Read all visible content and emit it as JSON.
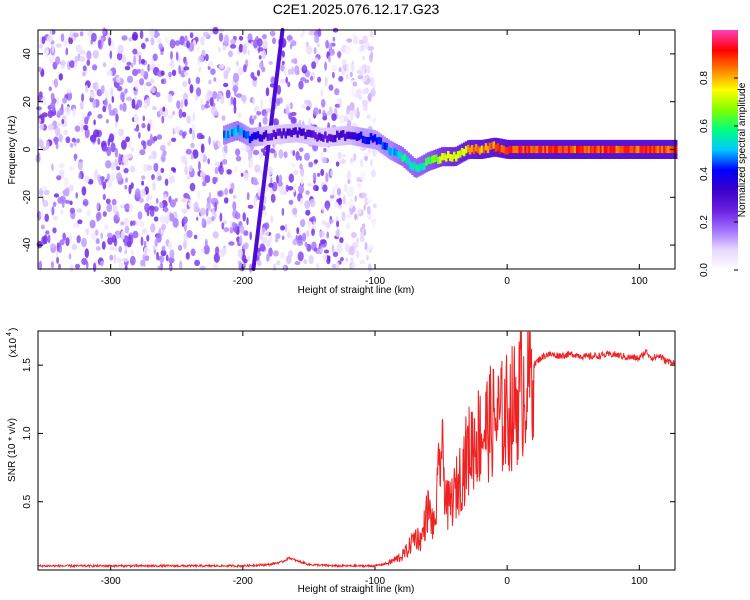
{
  "figure": {
    "title": "C2E1.2025.076.12.17.G23"
  },
  "chart_data": [
    {
      "type": "heatmap",
      "title": "C2E1.2025.076.12.17.G23",
      "xlabel": "Height of straight line (km)",
      "ylabel": "Frequency (Hz)",
      "xlim": [
        -355,
        127
      ],
      "ylim": [
        -50,
        50
      ],
      "x_ticks": [
        -300,
        -200,
        -100,
        0,
        100
      ],
      "x_tick_labels": [
        "-300",
        "-200",
        "-100",
        "0",
        "100"
      ],
      "y_ticks": [
        -40,
        -20,
        0,
        20,
        40
      ],
      "y_tick_labels": [
        "-40",
        "-20",
        "0",
        "20",
        "40"
      ],
      "colorbar": {
        "label": "Normalized spectral amplitude",
        "range": [
          0,
          1
        ],
        "ticks": [
          0,
          0.2,
          0.4,
          0.6,
          0.8
        ],
        "tick_labels": [
          "0.0",
          "0.2",
          "0.4",
          "0.6",
          "0.8"
        ],
        "colormap": [
          "#ffffff",
          "#e8d8ff",
          "#a070ff",
          "#6a1fe0",
          "#3a00c8",
          "#0000ff",
          "#00c8ff",
          "#00ff80",
          "#80ff00",
          "#ffff00",
          "#ff8000",
          "#ff0000",
          "#ff40c0"
        ]
      },
      "noise_region_x": [
        -355,
        -100
      ],
      "noise_level": 0.25,
      "dominant_track": {
        "description_points_x": [
          -215,
          -205,
          -195,
          -180,
          -160,
          -140,
          -120,
          -110,
          -100,
          -90,
          -80,
          -70,
          -60,
          -50,
          -40,
          -30,
          -20,
          -10,
          0,
          20,
          50,
          80,
          127
        ],
        "frequency_hz": [
          6,
          8,
          5,
          6,
          7,
          5,
          6,
          5,
          4,
          0,
          -3,
          -8,
          -5,
          -3,
          -3,
          0,
          0,
          1,
          0,
          0,
          0,
          0,
          0
        ],
        "amplitude": [
          0.5,
          0.55,
          0.45,
          0.3,
          0.35,
          0.3,
          0.35,
          0.45,
          0.45,
          0.5,
          0.6,
          0.6,
          0.65,
          0.75,
          0.8,
          0.85,
          0.9,
          0.9,
          0.95,
          0.95,
          0.95,
          0.95,
          0.95
        ]
      },
      "sloped_line": {
        "from": [
          -192,
          -50
        ],
        "to": [
          -170,
          50
        ],
        "amplitude": 0.3
      }
    },
    {
      "type": "line",
      "xlabel": "Height of straight line (km)",
      "ylabel": "SNR (10 * v/v)",
      "multiplier_label": "(x10",
      "multiplier_exponent": "4",
      "xlim": [
        -355,
        127
      ],
      "ylim": [
        0,
        1.75
      ],
      "x_ticks": [
        -300,
        -200,
        -100,
        0,
        100
      ],
      "x_tick_labels": [
        "-300",
        "-200",
        "-100",
        "0",
        "100"
      ],
      "y_ticks": [
        0.5,
        1.0,
        1.5
      ],
      "y_tick_labels": [
        "0.5",
        "1.0",
        "1.5"
      ],
      "line_color": "#ee2222",
      "series": [
        {
          "x": [
            -355,
            -300,
            -250,
            -200,
            -180,
            -170,
            -165,
            -160,
            -150,
            -130,
            -110,
            -100,
            -90,
            -80,
            -75,
            -70,
            -65,
            -60,
            -55,
            -50,
            -45,
            -40,
            -35,
            -30,
            -25,
            -20,
            -15,
            -10,
            -5,
            0,
            5,
            10,
            15,
            20,
            25,
            30,
            40,
            50,
            60,
            70,
            80,
            90,
            100,
            105,
            110,
            115,
            120,
            127
          ],
          "y": [
            0.03,
            0.03,
            0.03,
            0.03,
            0.04,
            0.06,
            0.09,
            0.07,
            0.04,
            0.03,
            0.03,
            0.03,
            0.05,
            0.1,
            0.15,
            0.25,
            0.22,
            0.45,
            0.3,
            0.9,
            0.45,
            0.55,
            0.7,
            0.85,
            0.95,
            1.0,
            1.05,
            1.1,
            1.1,
            1.15,
            1.2,
            1.3,
            1.4,
            1.5,
            1.55,
            1.58,
            1.57,
            1.58,
            1.56,
            1.57,
            1.58,
            1.56,
            1.55,
            1.6,
            1.55,
            1.57,
            1.53,
            1.52
          ]
        }
      ]
    }
  ]
}
